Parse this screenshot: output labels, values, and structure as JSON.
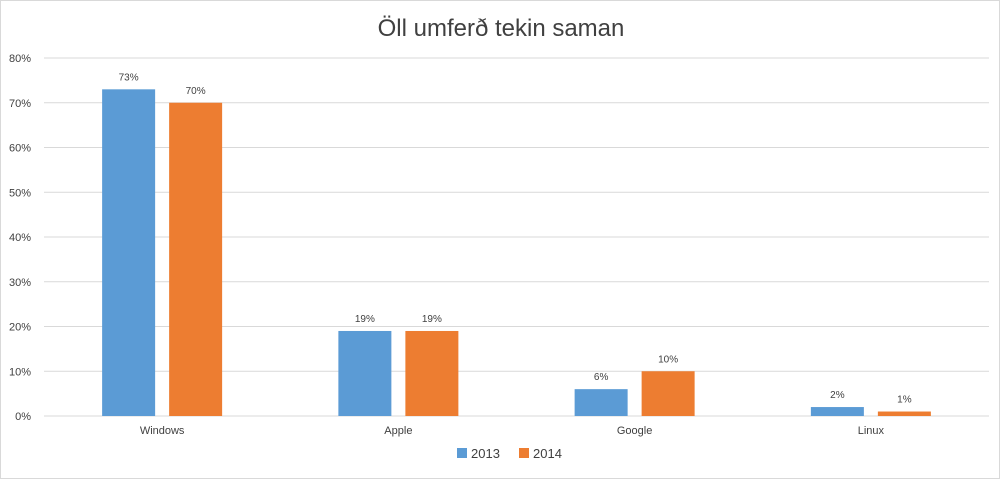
{
  "chart_data": {
    "type": "bar",
    "title": "Öll umferð tekin saman",
    "categories": [
      "Windows",
      "Apple",
      "Google",
      "Linux"
    ],
    "series": [
      {
        "name": "2013",
        "color": "#5B9BD5",
        "values": [
          73,
          19,
          6,
          2
        ],
        "labels": [
          "73%",
          "19%",
          "6%",
          "2%"
        ]
      },
      {
        "name": "2014",
        "color": "#ED7D31",
        "values": [
          70,
          19,
          10,
          1
        ],
        "labels": [
          "70%",
          "19%",
          "10%",
          "1%"
        ]
      }
    ],
    "ylim": [
      0,
      80
    ],
    "yticks": [
      "0%",
      "10%",
      "20%",
      "30%",
      "40%",
      "50%",
      "60%",
      "70%",
      "80%"
    ],
    "ytick_values": [
      0,
      10,
      20,
      30,
      40,
      50,
      60,
      70,
      80
    ],
    "grid": true,
    "legend_position": "bottom",
    "gridline_color": "#d9d9d9"
  }
}
